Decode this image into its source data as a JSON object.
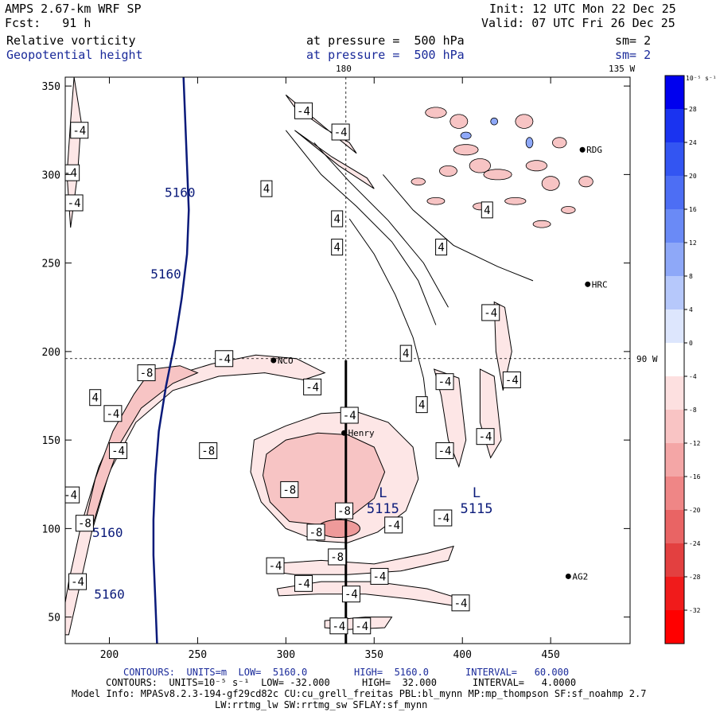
{
  "header": {
    "model": "AMPS 2.67-km WRF SP",
    "init": "Init: 12 UTC Mon 22 Dec 25",
    "forecast": "Fcst:   91 h",
    "valid": "Valid: 07 UTC Fri 26 Dec 25",
    "field1": "Relative vorticity",
    "field1_level": "at pressure =  500 hPa",
    "field1_sm": "sm= 2",
    "field2": "Geopotential height",
    "field2_level": "at pressure =  500 hPa",
    "field2_sm": "sm= 2"
  },
  "map_labels": {
    "lon_180": "180",
    "lon_135w": "135 W",
    "lat_90w": "90 W",
    "stations": [
      {
        "name": "NCO",
        "x": 293,
        "y": 195
      },
      {
        "name": "Henry",
        "x": 333,
        "y": 154
      },
      {
        "name": "RDG",
        "x": 468,
        "y": 314
      },
      {
        "name": "HRC",
        "x": 471,
        "y": 238
      },
      {
        "name": "AG2",
        "x": 460,
        "y": 73
      }
    ]
  },
  "colors": {
    "height_contour": "#0a1a7a",
    "neg_fill_1": "#fde6e6",
    "neg_fill_2": "#f7c4c4",
    "neg_fill_3": "#ee9a9a"
  },
  "chart_data": {
    "type": "contour",
    "xlim": [
      175,
      495
    ],
    "ylim": [
      35,
      355
    ],
    "xticks": [
      200,
      250,
      300,
      350,
      400,
      450
    ],
    "yticks": [
      50,
      100,
      150,
      200,
      250,
      300,
      350
    ],
    "height_contours": [
      {
        "value": 5160,
        "label": "5160",
        "points": [
          [
            242,
            355
          ],
          [
            243,
            330
          ],
          [
            244,
            305
          ],
          [
            245,
            280
          ],
          [
            244,
            255
          ],
          [
            241,
            230
          ],
          [
            237,
            205
          ],
          [
            232,
            180
          ],
          [
            228,
            155
          ],
          [
            226,
            130
          ],
          [
            225,
            105
          ],
          [
            225,
            85
          ],
          [
            226,
            60
          ],
          [
            227,
            35
          ]
        ]
      }
    ],
    "height_labels": [
      {
        "text": "5160",
        "x": 240,
        "y": 290
      },
      {
        "text": "5160",
        "x": 232,
        "y": 244
      },
      {
        "text": "5160",
        "x": 199,
        "y": 98
      },
      {
        "text": "5160",
        "x": 200,
        "y": 63
      }
    ],
    "lows": [
      {
        "symbol": "L",
        "value": "5115",
        "x": 355,
        "y": 115
      },
      {
        "symbol": "L",
        "value": "5115",
        "x": 408,
        "y": 115
      }
    ],
    "vorticity_labels": [
      "-4",
      "-8",
      "4",
      "-4",
      "-8",
      "-4",
      "-8",
      "-8",
      "-8",
      "-4",
      "4"
    ],
    "vorticity_label_positions": [
      {
        "text": "-4",
        "x": 183,
        "y": 325
      },
      {
        "text": "-4",
        "x": 178,
        "y": 301
      },
      {
        "text": "-4",
        "x": 180,
        "y": 284
      },
      {
        "text": "-4",
        "x": 310,
        "y": 336
      },
      {
        "text": "-4",
        "x": 331,
        "y": 324
      },
      {
        "text": "4",
        "x": 289,
        "y": 292
      },
      {
        "text": "4",
        "x": 329,
        "y": 275
      },
      {
        "text": "4",
        "x": 329,
        "y": 259
      },
      {
        "text": "4",
        "x": 388,
        "y": 259
      },
      {
        "text": "4",
        "x": 414,
        "y": 280
      },
      {
        "text": "-4",
        "x": 416,
        "y": 222
      },
      {
        "text": "4",
        "x": 368,
        "y": 199
      },
      {
        "text": "-4",
        "x": 265,
        "y": 196
      },
      {
        "text": "-8",
        "x": 221,
        "y": 188
      },
      {
        "text": "-4",
        "x": 315,
        "y": 180
      },
      {
        "text": "-4",
        "x": 390,
        "y": 183
      },
      {
        "text": "-4",
        "x": 428,
        "y": 184
      },
      {
        "text": "4",
        "x": 377,
        "y": 170
      },
      {
        "text": "4",
        "x": 192,
        "y": 174
      },
      {
        "text": "-4",
        "x": 202,
        "y": 165
      },
      {
        "text": "-4",
        "x": 336,
        "y": 164
      },
      {
        "text": "-4",
        "x": 205,
        "y": 144
      },
      {
        "text": "-8",
        "x": 256,
        "y": 144
      },
      {
        "text": "-4",
        "x": 390,
        "y": 144
      },
      {
        "text": "-4",
        "x": 413,
        "y": 152
      },
      {
        "text": "-8",
        "x": 302,
        "y": 122
      },
      {
        "text": "-4",
        "x": 178,
        "y": 119
      },
      {
        "text": "-8",
        "x": 186,
        "y": 103
      },
      {
        "text": "-8",
        "x": 333,
        "y": 110
      },
      {
        "text": "-4",
        "x": 361,
        "y": 102
      },
      {
        "text": "-4",
        "x": 389,
        "y": 106
      },
      {
        "text": "-8",
        "x": 317,
        "y": 98
      },
      {
        "text": "-8",
        "x": 329,
        "y": 84
      },
      {
        "text": "-4",
        "x": 294,
        "y": 79
      },
      {
        "text": "-4",
        "x": 353,
        "y": 73
      },
      {
        "text": "-4",
        "x": 310,
        "y": 69
      },
      {
        "text": "-4",
        "x": 337,
        "y": 63
      },
      {
        "text": "-4",
        "x": 182,
        "y": 70
      },
      {
        "text": "-4",
        "x": 399,
        "y": 58
      },
      {
        "text": "-4",
        "x": 330,
        "y": 45
      },
      {
        "text": "-4",
        "x": 343,
        "y": 45
      },
      {
        "text": "-4",
        "x": 168,
        "y": 43
      }
    ]
  },
  "colorbar": {
    "unit": "10⁻⁵ s⁻¹",
    "levels": [
      "32",
      "28",
      "24",
      "20",
      "16",
      "12",
      "8",
      "4",
      "0",
      "-4",
      "-8",
      "-12",
      "-16",
      "-20",
      "-24",
      "-28",
      "-32"
    ],
    "colors": [
      "#0000ee",
      "#1a33f0",
      "#3355f2",
      "#4d6ef4",
      "#6a8af6",
      "#8ea8f8",
      "#b6c8fb",
      "#dde6fd",
      "#ffffff",
      "#fde0e0",
      "#f9c4c4",
      "#f4a6a6",
      "#ef8686",
      "#e96464",
      "#e34040",
      "#f01b1b",
      "#ff0000"
    ]
  },
  "footer": {
    "line1_prefix": "CONTOURS:  UNITS=m  LOW=  5160.0",
    "line1_high": "HIGH=  5160.0",
    "line1_interval": "INTERVAL=   60.000",
    "line2_prefix": "CONTOURS:  UNITS=10⁻⁵ s⁻¹  LOW= -32.000",
    "line2_high": "HIGH=  32.000",
    "line2_interval": "INTERVAL=   4.0000",
    "model_info": "Model Info: MPASv8.2.3-194-gf29cd82c CU:cu_grell_freitas PBL:bl_mynn MP:mp_thompson SF:sf_noahmp 2.7",
    "model_info2": "LW:rrtmg_lw SW:rrtmg_sw SFLAY:sf_mynn"
  }
}
